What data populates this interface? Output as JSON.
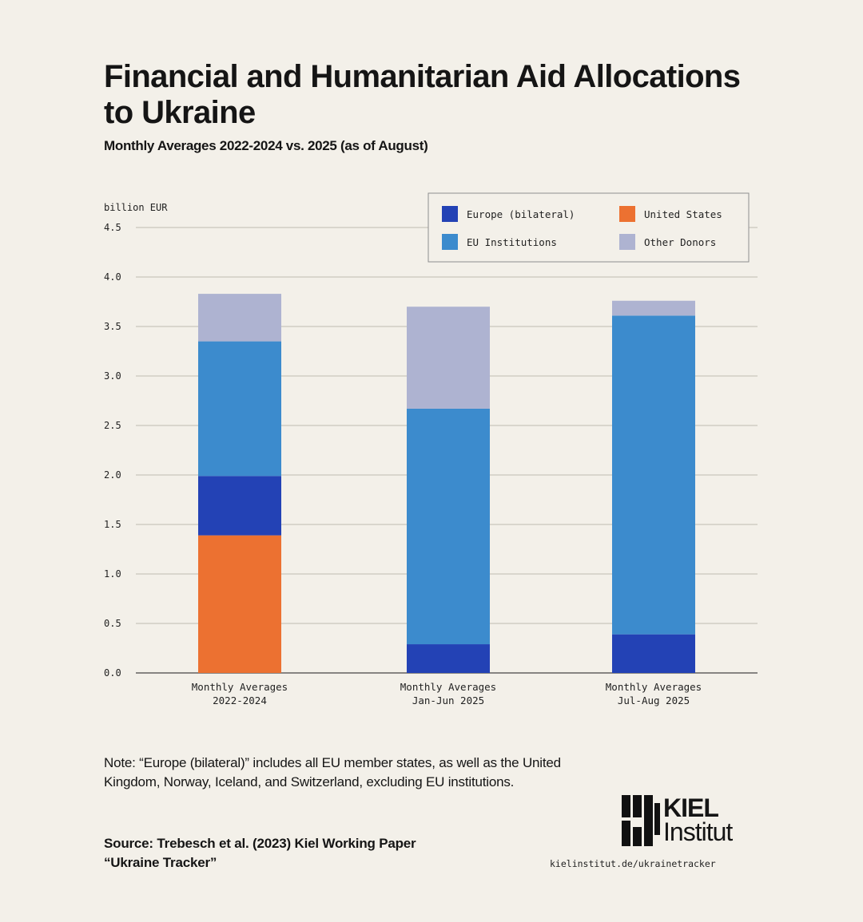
{
  "title": "Financial and Humanitarian Aid Allocations to Ukraine",
  "subtitle": "Monthly Averages 2022-2024 vs. 2025 (as of August)",
  "chart_data": {
    "type": "bar",
    "stacked": true,
    "ylabel": "billion EUR",
    "ylim": [
      0,
      4.5
    ],
    "yticks": [
      "0.0",
      "0.5",
      "1.0",
      "1.5",
      "2.0",
      "2.5",
      "3.0",
      "3.5",
      "4.0",
      "4.5"
    ],
    "grid": true,
    "legend_position": "top-right",
    "categories": [
      [
        "Monthly Averages",
        "2022-2024"
      ],
      [
        "Monthly Averages",
        "Jan-Jun 2025"
      ],
      [
        "Monthly Averages",
        "Jul-Aug 2025"
      ]
    ],
    "series": [
      {
        "name": "United States",
        "color": "#ec7131",
        "values": [
          1.39,
          0,
          0
        ]
      },
      {
        "name": "Europe (bilateral)",
        "color": "#2342b5",
        "values": [
          0.6,
          0.29,
          0.39
        ]
      },
      {
        "name": "EU Institutions",
        "color": "#3c8bcd",
        "values": [
          1.36,
          2.38,
          3.22
        ]
      },
      {
        "name": "Other Donors",
        "color": "#aeb3d1",
        "values": [
          0.48,
          1.03,
          0.15
        ]
      }
    ],
    "legend_order": [
      "Europe (bilateral)",
      "United States",
      "EU Institutions",
      "Other Donors"
    ]
  },
  "note": "Note: “Europe (bilateral)” includes all EU member states, as well as the United Kingdom, Norway, Iceland, and Switzerland, excluding EU institutions.",
  "source": "Source: Trebesch et al. (2023) Kiel Working Paper “Ukraine Tracker”",
  "logo": {
    "line1": "KIEL",
    "line2": "Institut"
  },
  "url": "kielinstitut.de/ukrainetracker"
}
